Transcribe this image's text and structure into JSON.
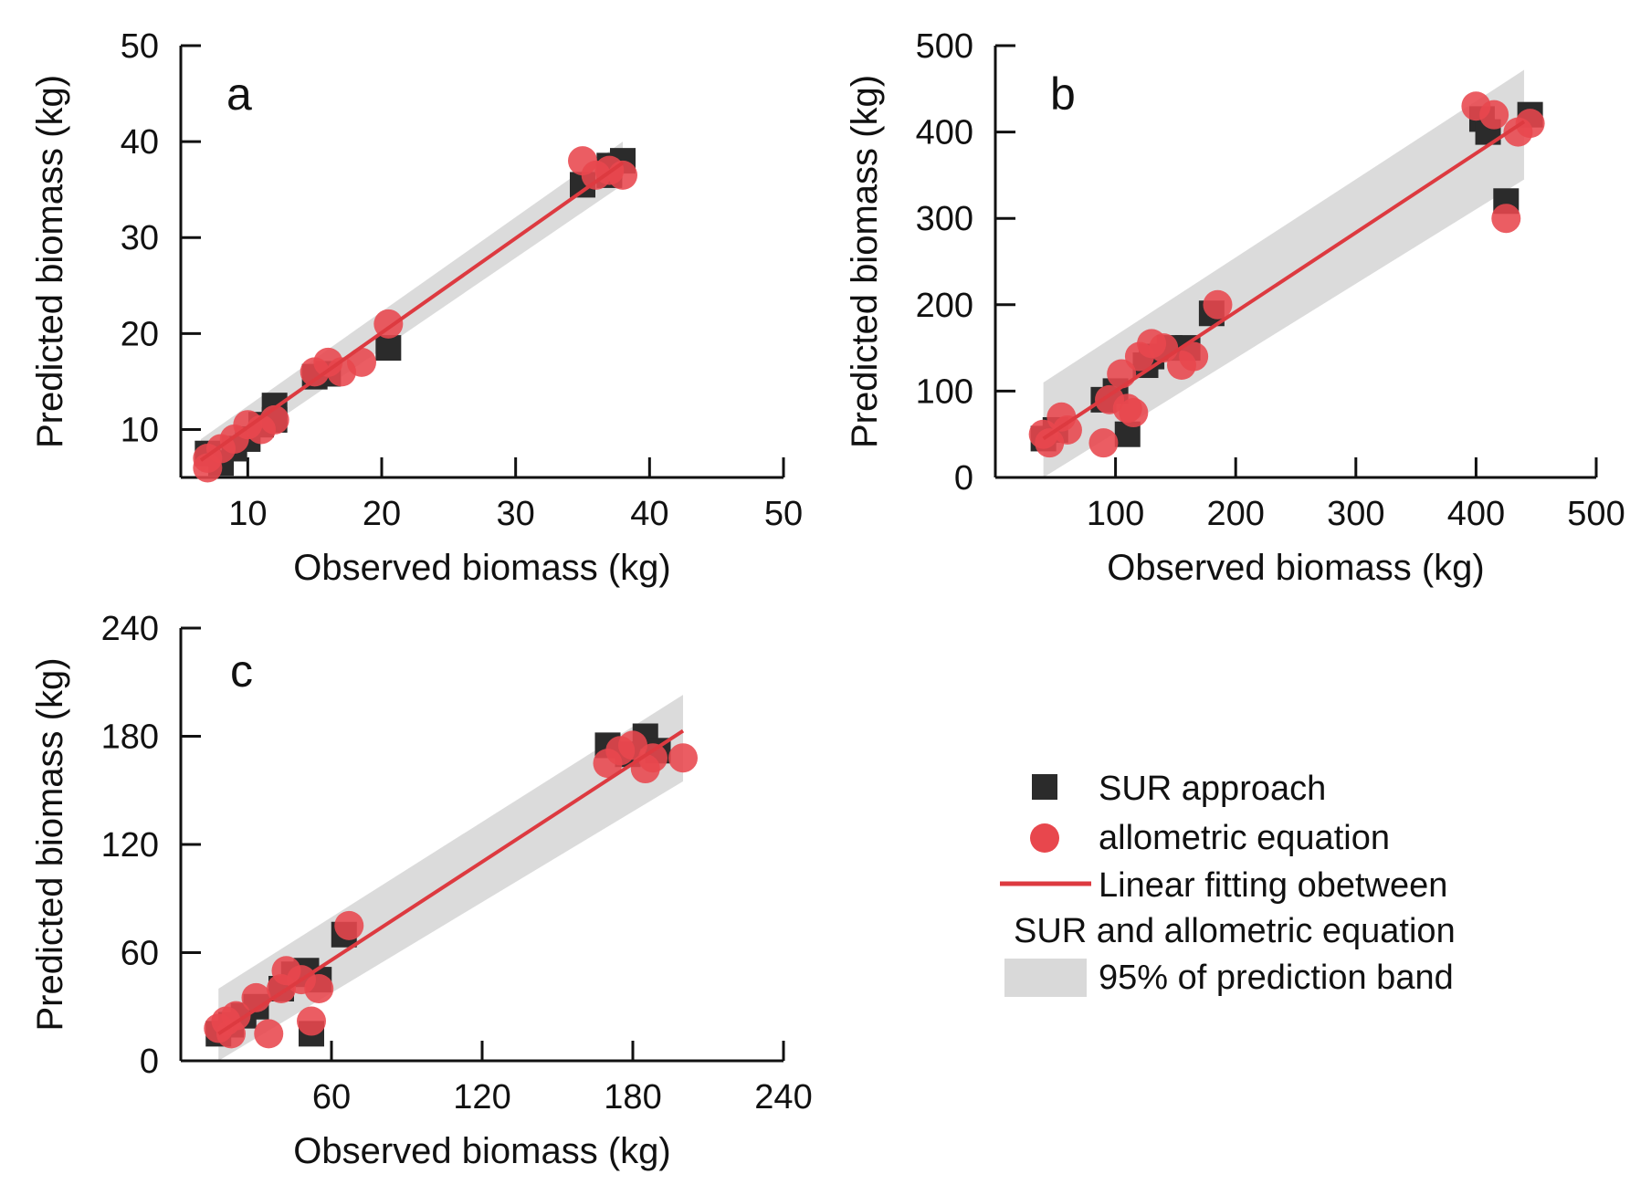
{
  "colors": {
    "sur_marker": "#2b2b2b",
    "allometric_marker": "#e8474d",
    "fit_line": "#dd3a40",
    "band": "#d9d9d9",
    "axis": "#111111"
  },
  "legend": {
    "sur_label": "SUR approach",
    "allometric_label": "allometric equation",
    "line_label_1": "Linear fitting obetween",
    "line_label_2": "SUR and  allometric equation",
    "band_label": "95% of prediction band"
  },
  "chart_data": [
    {
      "type": "scatter",
      "panel": "a",
      "xlabel": "Observed biomass (kg)",
      "ylabel": "Predicted biomass (kg)",
      "xlim": [
        5,
        50
      ],
      "ylim": [
        5,
        50
      ],
      "xticks": [
        10,
        20,
        30,
        40,
        50
      ],
      "yticks": [
        10,
        20,
        30,
        40,
        50
      ],
      "series": [
        {
          "name": "SUR approach",
          "points": [
            [
              7,
              7.5
            ],
            [
              8,
              6.5
            ],
            [
              9,
              8
            ],
            [
              10,
              9
            ],
            [
              11,
              10.5
            ],
            [
              12,
              12.5
            ],
            [
              12,
              11
            ],
            [
              15,
              15.5
            ],
            [
              16,
              15.8
            ],
            [
              20.5,
              18.5
            ],
            [
              35,
              35.5
            ],
            [
              37,
              37.5
            ],
            [
              38,
              38
            ],
            [
              37,
              36.5
            ]
          ]
        },
        {
          "name": "allometric equation",
          "points": [
            [
              7,
              7
            ],
            [
              7,
              6
            ],
            [
              8,
              8
            ],
            [
              9,
              9
            ],
            [
              10,
              10.5
            ],
            [
              11,
              10
            ],
            [
              12,
              11
            ],
            [
              15,
              16
            ],
            [
              16,
              17
            ],
            [
              17,
              16
            ],
            [
              18.5,
              17
            ],
            [
              20.5,
              21
            ],
            [
              35,
              38
            ],
            [
              36,
              36.5
            ],
            [
              37,
              37
            ],
            [
              38,
              36.5
            ]
          ]
        }
      ],
      "fit": {
        "x": [
          6.5,
          38
        ],
        "y": [
          6.8,
          37.8
        ]
      },
      "band": {
        "x": [
          6.5,
          38
        ],
        "lower": [
          5.5,
          35.5
        ],
        "upper": [
          9,
          40
        ]
      }
    },
    {
      "type": "scatter",
      "panel": "b",
      "xlabel": "Observed biomass (kg)",
      "ylabel": "Predicted biomass (kg)",
      "xlim": [
        0,
        500
      ],
      "ylim": [
        0,
        500
      ],
      "xticks": [
        100,
        200,
        300,
        400,
        500
      ],
      "yticks": [
        0,
        100,
        200,
        300,
        400,
        500
      ],
      "series": [
        {
          "name": "SUR approach",
          "points": [
            [
              40,
              45
            ],
            [
              50,
              55
            ],
            [
              90,
              90
            ],
            [
              100,
              100
            ],
            [
              110,
              50
            ],
            [
              125,
              130
            ],
            [
              130,
              140
            ],
            [
              145,
              150
            ],
            [
              160,
              150
            ],
            [
              180,
              190
            ],
            [
              405,
              415
            ],
            [
              410,
              400
            ],
            [
              425,
              320
            ],
            [
              445,
              420
            ]
          ]
        },
        {
          "name": "allometric equation",
          "points": [
            [
              40,
              50
            ],
            [
              45,
              40
            ],
            [
              55,
              70
            ],
            [
              60,
              55
            ],
            [
              90,
              40
            ],
            [
              95,
              90
            ],
            [
              105,
              120
            ],
            [
              110,
              80
            ],
            [
              115,
              75
            ],
            [
              120,
              140
            ],
            [
              130,
              155
            ],
            [
              140,
              150
            ],
            [
              155,
              130
            ],
            [
              165,
              140
            ],
            [
              185,
              200
            ],
            [
              400,
              430
            ],
            [
              415,
              420
            ],
            [
              425,
              300
            ],
            [
              435,
              400
            ],
            [
              445,
              410
            ]
          ]
        }
      ],
      "fit": {
        "x": [
          40,
          440
        ],
        "y": [
          45,
          412
        ]
      },
      "band": {
        "x": [
          40,
          440
        ],
        "lower": [
          0,
          345
        ],
        "upper": [
          110,
          472
        ]
      }
    },
    {
      "type": "scatter",
      "panel": "c",
      "xlabel": "Observed biomass (kg)",
      "ylabel": "Predicted biomass (kg)",
      "xlim": [
        0,
        240
      ],
      "ylim": [
        0,
        240
      ],
      "xticks": [
        60,
        120,
        180,
        240
      ],
      "yticks": [
        0,
        60,
        120,
        180,
        240
      ],
      "series": [
        {
          "name": "SUR approach",
          "points": [
            [
              15,
              15
            ],
            [
              20,
              20
            ],
            [
              25,
              25
            ],
            [
              30,
              30
            ],
            [
              40,
              40
            ],
            [
              45,
              48
            ],
            [
              50,
              50
            ],
            [
              52,
              15
            ],
            [
              55,
              45
            ],
            [
              65,
              70
            ],
            [
              170,
              175
            ],
            [
              178,
              170
            ],
            [
              185,
              180
            ],
            [
              190,
              172
            ]
          ]
        },
        {
          "name": "allometric equation",
          "points": [
            [
              15,
              18
            ],
            [
              18,
              22
            ],
            [
              20,
              15
            ],
            [
              22,
              25
            ],
            [
              30,
              35
            ],
            [
              35,
              15
            ],
            [
              40,
              40
            ],
            [
              42,
              50
            ],
            [
              48,
              45
            ],
            [
              52,
              22
            ],
            [
              55,
              40
            ],
            [
              67,
              75
            ],
            [
              170,
              165
            ],
            [
              175,
              172
            ],
            [
              180,
              175
            ],
            [
              185,
              162
            ],
            [
              188,
              168
            ],
            [
              200,
              168
            ]
          ]
        }
      ],
      "fit": {
        "x": [
          15,
          200
        ],
        "y": [
          15,
          183
        ]
      },
      "band": {
        "x": [
          15,
          200
        ],
        "lower": [
          0,
          155
        ],
        "upper": [
          40,
          203
        ]
      }
    }
  ]
}
